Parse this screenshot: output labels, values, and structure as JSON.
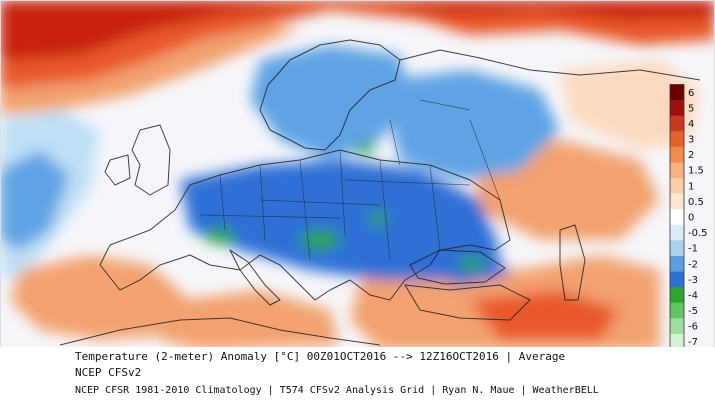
{
  "caption": {
    "line1": "Temperature (2-meter) Anomaly  [°C] 00Z01OCT2016 --> 12Z16OCT2016 | Average",
    "line2": "NCEP CFSv2",
    "line3": "NCEP CFSR 1981-2010 Climatology | T574 CFSv2 Analysis Grid | Ryan N. Maue | WeatherBELL"
  },
  "legend": {
    "labels": [
      "6",
      "5",
      "4",
      "3",
      "2",
      "1.5",
      "1",
      "0.5",
      "0",
      "-0.5",
      "-1",
      "-2",
      "-3",
      "-4",
      "-5",
      "-6",
      "-7"
    ],
    "colors": [
      "#6b0000",
      "#9e1010",
      "#c83a1e",
      "#e2622a",
      "#f08c4e",
      "#f6b27e",
      "#f9cfa8",
      "#fbe6d2",
      "#ffffff",
      "#d9ecf8",
      "#a9d2f0",
      "#5f9fe0",
      "#2f6fd0",
      "#2fa52f",
      "#62c462",
      "#9fdd9f",
      "#d4f2d4"
    ]
  },
  "colors": {
    "hot_dark": "#c8200f",
    "hot": "#e8582a",
    "warm": "#f3a270",
    "mild": "#fbd9c0",
    "neutral": "#f6f6fa",
    "cool": "#bfe0f6",
    "cold": "#5ea3e4",
    "very_cold": "#2f6fd6",
    "extreme_cold": "#2da43a"
  }
}
